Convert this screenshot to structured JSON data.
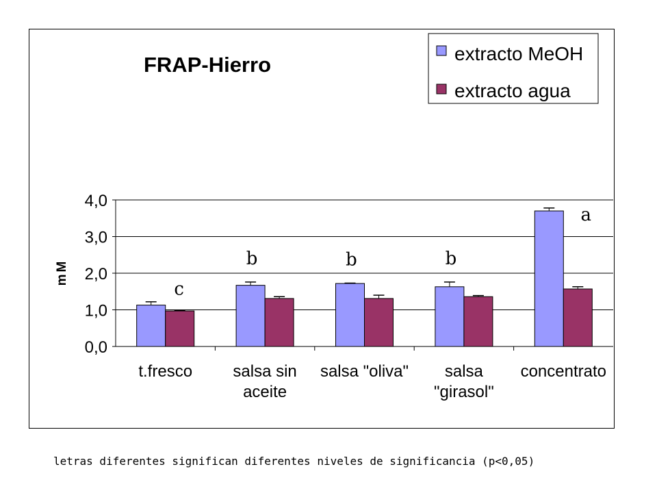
{
  "chart_data": {
    "type": "bar",
    "title": "FRAP-Hierro",
    "ylabel": "mM",
    "xlabel": "",
    "ylim": [
      0,
      4
    ],
    "yticks": [
      "0,0",
      "1,0",
      "2,0",
      "3,0",
      "4,0"
    ],
    "grid": true,
    "legend_position": "top-right",
    "categories": [
      [
        "t.fresco"
      ],
      [
        "salsa sin",
        "aceite"
      ],
      [
        "salsa \"oliva\""
      ],
      [
        "salsa",
        "\"girasol\""
      ],
      [
        "concentrato"
      ]
    ],
    "series": [
      {
        "name": "extracto MeOH",
        "color": "#9999ff",
        "values": [
          1.13,
          1.67,
          1.72,
          1.63,
          3.7
        ],
        "errors": [
          0.09,
          0.09,
          0.01,
          0.13,
          0.08
        ]
      },
      {
        "name": "extracto agua",
        "color": "#993366",
        "values": [
          0.97,
          1.31,
          1.31,
          1.36,
          1.57
        ],
        "errors": [
          0.01,
          0.05,
          0.09,
          0.03,
          0.06
        ]
      }
    ],
    "significance_letters": [
      "c",
      "b",
      "b",
      "b",
      "a"
    ]
  },
  "footnote": "letras diferentes significan diferentes niveles de significancia (p<0,05)"
}
